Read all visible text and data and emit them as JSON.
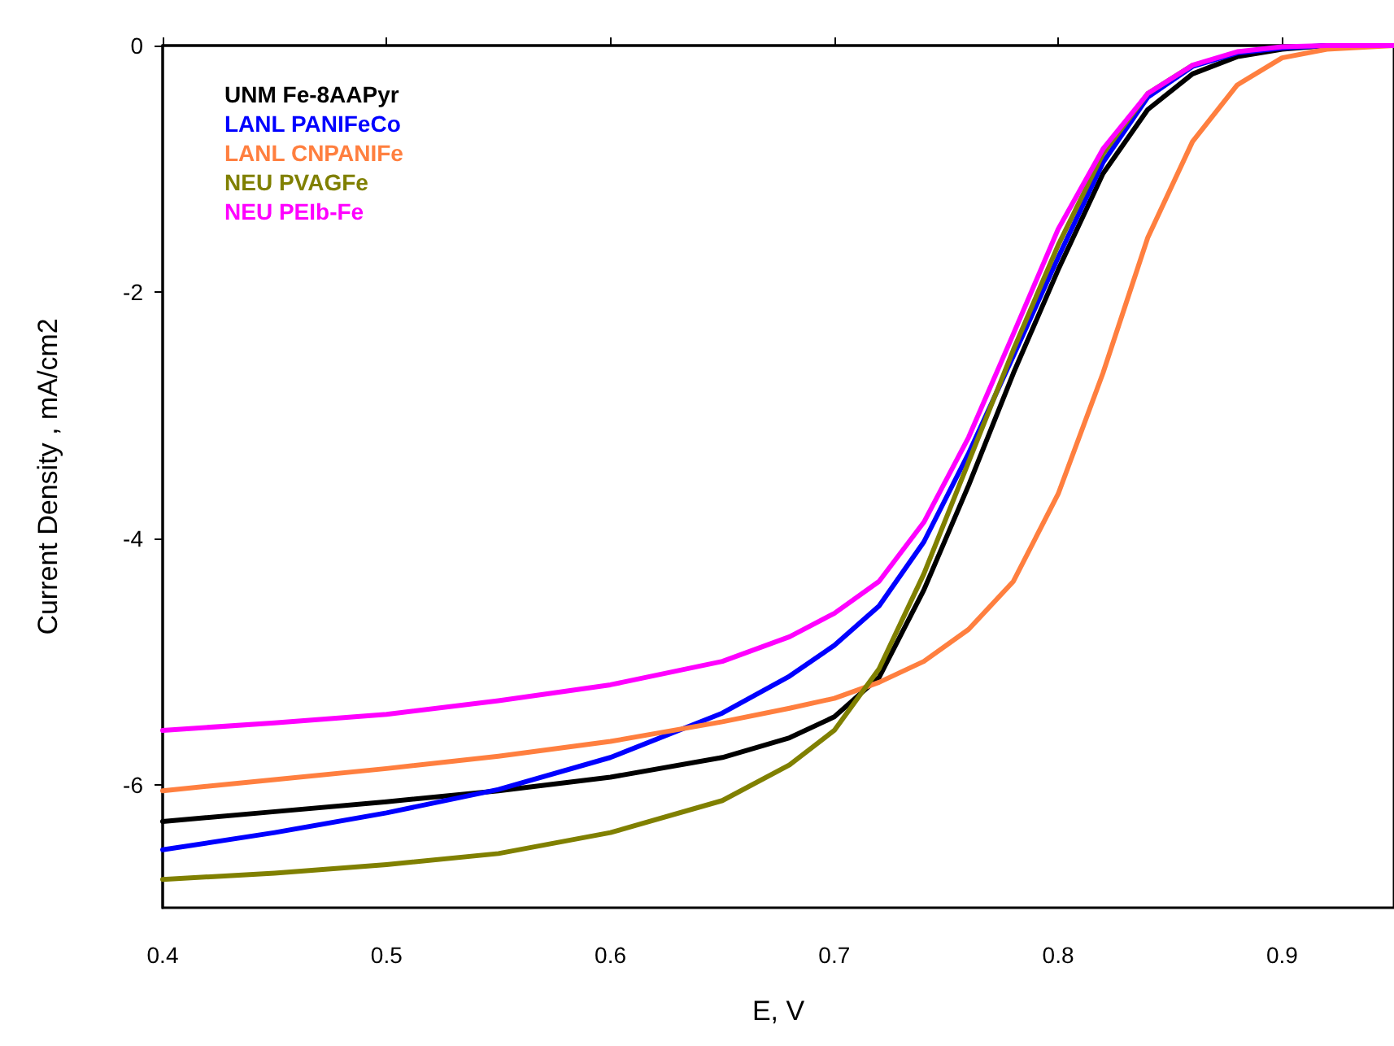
{
  "chart_data": {
    "type": "line",
    "xlabel": "E, V",
    "ylabel": "Current Density , mA/cm2",
    "xlim": [
      0.4,
      0.95
    ],
    "xticks": [
      0.4,
      0.5,
      0.6,
      0.7,
      0.8,
      0.9
    ],
    "ylim": [
      -7,
      0
    ],
    "yticks": [
      -6,
      -4,
      -2,
      0
    ],
    "grid": false,
    "legend": "top left",
    "line_style": "solid",
    "marker": "none",
    "x": [
      0.4,
      0.45,
      0.5,
      0.55,
      0.6,
      0.65,
      0.68,
      0.7,
      0.72,
      0.74,
      0.76,
      0.78,
      0.8,
      0.82,
      0.84,
      0.86,
      0.88,
      0.9,
      0.92,
      0.95
    ],
    "series": [
      {
        "name": "UNM Fe-8AAPyr",
        "color": "#000000",
        "values": [
          -6.3,
          -6.22,
          -6.14,
          -6.05,
          -5.94,
          -5.78,
          -5.62,
          -5.45,
          -5.13,
          -4.42,
          -3.57,
          -2.66,
          -1.82,
          -1.04,
          -0.52,
          -0.23,
          -0.09,
          -0.03,
          0,
          0
        ]
      },
      {
        "name": "LANL PANIFeCo",
        "color": "#0000ff",
        "values": [
          -6.53,
          -6.39,
          -6.23,
          -6.04,
          -5.78,
          -5.42,
          -5.12,
          -4.87,
          -4.55,
          -4.03,
          -3.31,
          -2.52,
          -1.72,
          -0.95,
          -0.42,
          -0.17,
          -0.06,
          -0.02,
          0,
          0
        ]
      },
      {
        "name": "LANL CNPANIFe",
        "color": "#ff7f3f",
        "values": [
          -6.05,
          -5.96,
          -5.87,
          -5.77,
          -5.65,
          -5.49,
          -5.38,
          -5.3,
          -5.17,
          -5.0,
          -4.74,
          -4.35,
          -3.64,
          -2.66,
          -1.56,
          -0.78,
          -0.32,
          -0.1,
          -0.03,
          0
        ]
      },
      {
        "name": "NEU PVAGFe",
        "color": "#808000",
        "values": [
          -6.77,
          -6.72,
          -6.65,
          -6.56,
          -6.39,
          -6.13,
          -5.84,
          -5.56,
          -5.06,
          -4.29,
          -3.38,
          -2.47,
          -1.62,
          -0.88,
          -0.39,
          -0.16,
          null,
          null,
          null,
          null
        ]
      },
      {
        "name": "NEU PEIb-Fe",
        "color": "#ff00ff",
        "values": [
          -5.56,
          -5.5,
          -5.43,
          -5.32,
          -5.19,
          -5.0,
          -4.8,
          -4.61,
          -4.35,
          -3.87,
          -3.18,
          -2.34,
          -1.49,
          -0.84,
          -0.39,
          -0.16,
          -0.05,
          -0.01,
          0,
          0
        ]
      }
    ]
  }
}
